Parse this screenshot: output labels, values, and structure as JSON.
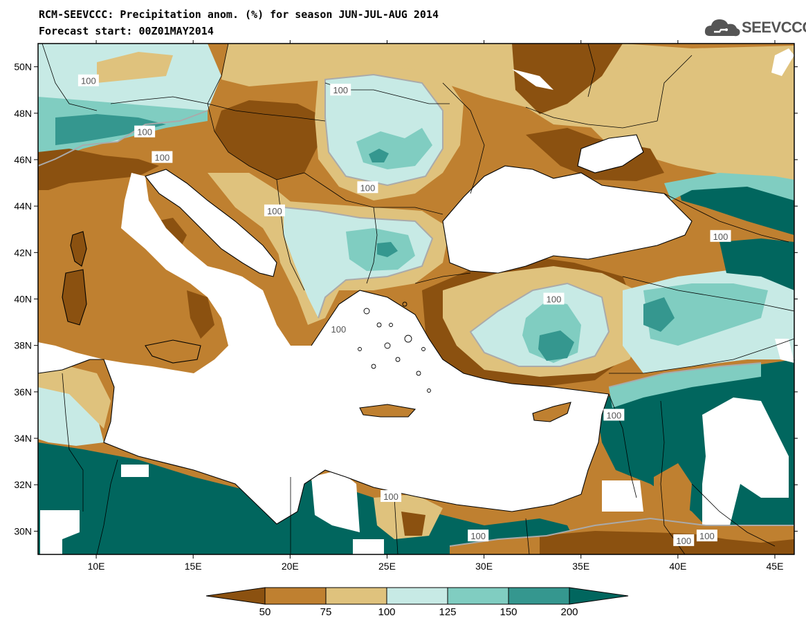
{
  "header": {
    "title": "RCM-SEEVCCC: Precipitation anom. (%) for season JUN-JUL-AUG 2014",
    "subtitle": "Forecast start: 00Z01MAY2014",
    "logo_text": "SEEVCCC"
  },
  "colors": {
    "sea": "#ffffff",
    "bin_lt50": "#8b5110",
    "bin_50_75": "#bf8030",
    "bin_75_100": "#dfc27d",
    "bin_100_125": "#c7eae5",
    "bin_125_150": "#80cdc1",
    "bin_150_200": "#35978f",
    "bin_gt200": "#01665e",
    "contour": "#aaaaaa",
    "border": "#000000"
  },
  "map": {
    "lon_range": [
      7,
      46
    ],
    "lat_range": [
      29,
      51
    ],
    "lon_ticks": [
      "10E",
      "15E",
      "20E",
      "25E",
      "30E",
      "35E",
      "40E",
      "45E"
    ],
    "lat_ticks": [
      "50N",
      "48N",
      "46N",
      "44N",
      "42N",
      "40N",
      "38N",
      "36N",
      "34N",
      "32N",
      "30N"
    ],
    "contour_labels": [
      {
        "text": "100",
        "lon": 9.6,
        "lat": 49.4
      },
      {
        "text": "100",
        "lon": 22.6,
        "lat": 49.0
      },
      {
        "text": "100",
        "lon": 12.5,
        "lat": 47.2
      },
      {
        "text": "100",
        "lon": 13.4,
        "lat": 46.1
      },
      {
        "text": "100",
        "lon": 24.0,
        "lat": 44.8
      },
      {
        "text": "100",
        "lon": 19.2,
        "lat": 43.8
      },
      {
        "text": "100",
        "lon": 33.6,
        "lat": 40.0
      },
      {
        "text": "100",
        "lon": 42.2,
        "lat": 42.7
      },
      {
        "text": "100",
        "lon": 22.5,
        "lat": 38.7
      },
      {
        "text": "100",
        "lon": 36.7,
        "lat": 35.0
      },
      {
        "text": "100",
        "lon": 29.7,
        "lat": 29.8
      },
      {
        "text": "100",
        "lon": 40.3,
        "lat": 29.6
      },
      {
        "text": "100",
        "lon": 41.5,
        "lat": 29.8
      },
      {
        "text": "100",
        "lon": 25.2,
        "lat": 31.5
      }
    ]
  },
  "colorbar": {
    "labels": [
      "50",
      "75",
      "100",
      "125",
      "150",
      "200"
    ],
    "bins": [
      "bin_lt50",
      "bin_50_75",
      "bin_75_100",
      "bin_100_125",
      "bin_125_150",
      "bin_150_200",
      "bin_gt200"
    ]
  }
}
